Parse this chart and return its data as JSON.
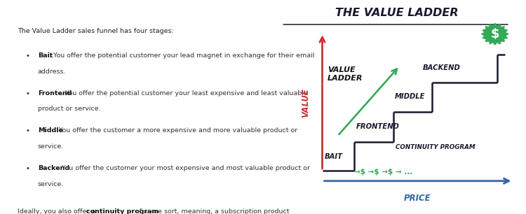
{
  "title": "THE VALUE LADDER",
  "bg_color": "#ffffff",
  "left_text_intro": "The Value Ladder sales funnel has four stages:",
  "bullets": [
    {
      "bold": "Bait",
      "text": ". You offer the potential customer your lead magnet in exchange for their email\naddress."
    },
    {
      "bold": "Frontend",
      "text": ". You offer the potential customer your least expensive and least valuable\nproduct or service."
    },
    {
      "bold": "Middle",
      "text": ". You offer the customer a more expensive and more valuable product or\nservice."
    },
    {
      "bold": "Backend",
      "text": ". You offer the customer your most expensive and most valuable product or\nservice."
    }
  ],
  "footer_text_plain": "Ideally, you also offer a ",
  "footer_bold": "continuity program",
  "footer_text_end": " of some sort, meaning, a subscription product\nthat generates recurring revenue.",
  "stair_color": "#1a1a2e",
  "arrow_color_y": "#cc3333",
  "arrow_color_x": "#3366aa",
  "ladder_arrow_color": "#33aa55",
  "label_color": "#1a1a2e",
  "dollar_color": "#33aa55",
  "badge_color": "#33aa55",
  "title_color": "#1a1a2e",
  "title_underline_color": "#1a1a2e",
  "value_label": "VALUE",
  "price_label": "PRICE",
  "value_ladder_label": "VALUE\nLADDER",
  "continuity_label": "CONTINUITY PROGRAM",
  "dollar_arrows": "→$ →$ →$ → ...",
  "stair_labels": [
    "BAIT",
    "FRONTEND",
    "MIDDLE",
    "BACKEND"
  ]
}
